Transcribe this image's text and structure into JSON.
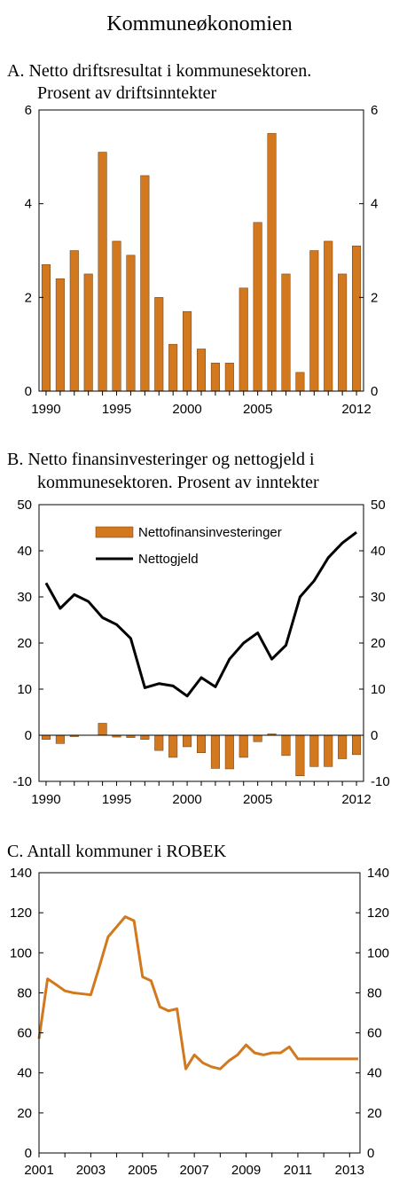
{
  "page_title": "Kommuneøkonomien",
  "chart_data": [
    {
      "type": "bar",
      "title_line1": "A.  Netto driftsresultat i kommunesektoren.",
      "title_line2": "Prosent av driftsinntekter",
      "x": [
        1990,
        1991,
        1992,
        1993,
        1994,
        1995,
        1996,
        1997,
        1998,
        1999,
        2000,
        2001,
        2002,
        2003,
        2004,
        2005,
        2006,
        2007,
        2008,
        2009,
        2010,
        2011,
        2012
      ],
      "values": [
        2.7,
        2.4,
        3.0,
        2.5,
        5.1,
        3.2,
        2.9,
        4.6,
        2.0,
        1.0,
        1.7,
        0.9,
        0.6,
        0.6,
        2.2,
        3.6,
        5.5,
        2.5,
        0.4,
        3.0,
        3.2,
        2.5,
        3.1
      ],
      "ylim": [
        0,
        6
      ],
      "yticks": [
        0,
        2,
        4,
        6
      ],
      "xtick_labels": [
        "1990",
        "1995",
        "2000",
        "2005",
        "2012"
      ],
      "bar_color": "#d2781e"
    },
    {
      "type": "bar+line",
      "title_line1": "B.  Netto finansinvesteringer og nettogjeld i",
      "title_line2": "kommunesektoren. Prosent av inntekter",
      "x": [
        1990,
        1991,
        1992,
        1993,
        1994,
        1995,
        1996,
        1997,
        1998,
        1999,
        2000,
        2001,
        2002,
        2003,
        2004,
        2005,
        2006,
        2007,
        2008,
        2009,
        2010,
        2011,
        2012
      ],
      "series": [
        {
          "name": "Nettofinansinvesteringer",
          "kind": "bar",
          "values": [
            -0.9,
            -1.8,
            -0.3,
            0,
            2.6,
            -0.4,
            -0.5,
            -0.9,
            -3.3,
            -4.8,
            -2.5,
            -3.8,
            -7.2,
            -7.3,
            -4.8,
            -1.4,
            0.3,
            -4.4,
            -8.8,
            -6.8,
            -6.8,
            -5.1,
            -4.2
          ],
          "color": "#d2781e"
        },
        {
          "name": "Nettogjeld",
          "kind": "line",
          "values": [
            33,
            27.5,
            30.5,
            29,
            25.5,
            24,
            21,
            10.3,
            11.2,
            10.7,
            8.5,
            12.5,
            10.5,
            16.5,
            20,
            22.2,
            16.5,
            19.5,
            30,
            33.5,
            38.5,
            41.7,
            44
          ],
          "color": "#000000"
        }
      ],
      "ylim": [
        -10,
        50
      ],
      "yticks": [
        -10,
        0,
        10,
        20,
        30,
        40,
        50
      ],
      "xtick_labels": [
        "1990",
        "1995",
        "2000",
        "2005",
        "2012"
      ],
      "legend": "top-center"
    },
    {
      "type": "line",
      "title": "C.  Antall kommuner i ROBEK",
      "x": [
        2001.0,
        2001.33,
        2001.67,
        2002.0,
        2002.33,
        2002.67,
        2003.0,
        2003.33,
        2003.67,
        2004.0,
        2004.33,
        2004.67,
        2005.0,
        2005.33,
        2005.67,
        2006.0,
        2006.33,
        2006.67,
        2007.0,
        2007.33,
        2007.67,
        2008.0,
        2008.33,
        2008.67,
        2009.0,
        2009.33,
        2009.67,
        2010.0,
        2010.33,
        2010.67,
        2011.0,
        2011.33,
        2011.67,
        2012.0,
        2012.33,
        2012.67,
        2013.0,
        2013.33
      ],
      "values": [
        57,
        87,
        84,
        81,
        80,
        79.5,
        79,
        93,
        108,
        113,
        118,
        116,
        88,
        86,
        73,
        71,
        72,
        42,
        49,
        45,
        43,
        42,
        46,
        49,
        54,
        50,
        49,
        50,
        50,
        53,
        47,
        47,
        47,
        47,
        47,
        47,
        47,
        47
      ],
      "ylim": [
        0,
        140
      ],
      "yticks": [
        0,
        20,
        40,
        60,
        80,
        100,
        120,
        140
      ],
      "xlim": [
        2001,
        2013.4
      ],
      "xtick_labels": [
        "2001",
        "2003",
        "2005",
        "2007",
        "2009",
        "2011",
        "2013"
      ],
      "line_color": "#d2781e"
    }
  ]
}
